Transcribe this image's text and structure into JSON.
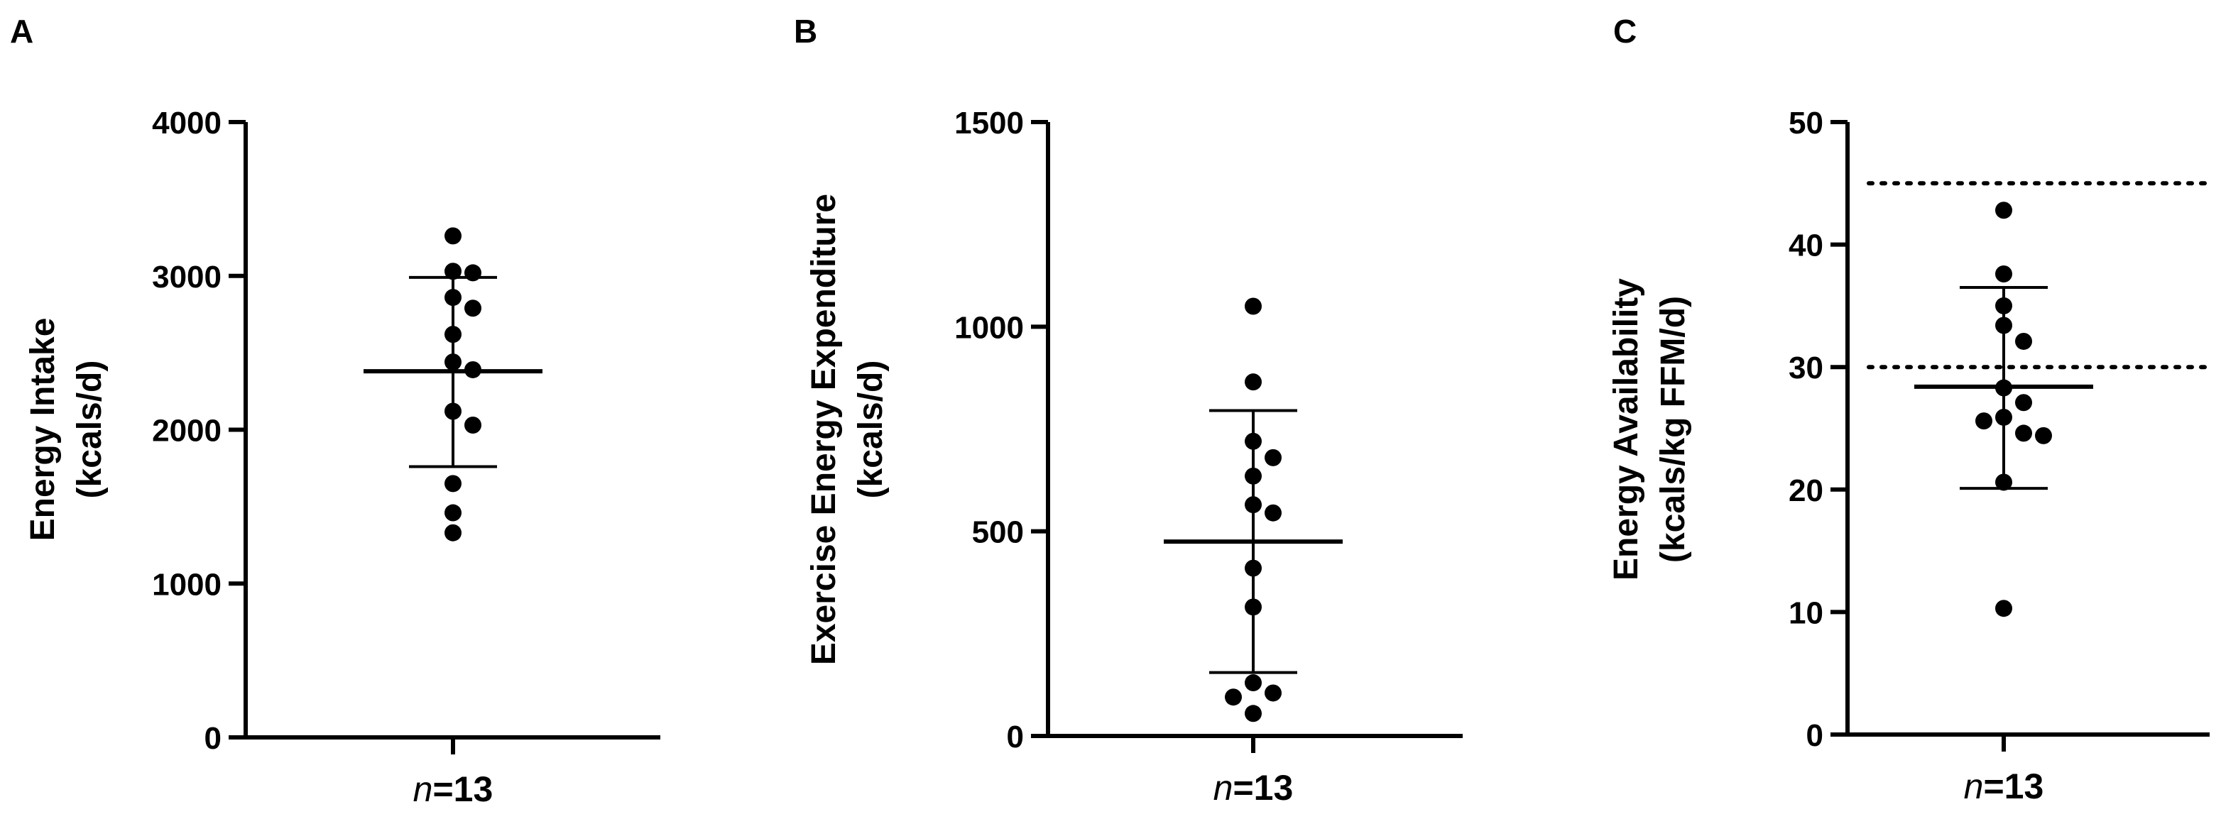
{
  "chart_data": [
    {
      "type": "scatter",
      "panel": "A",
      "title": "",
      "xlabel": "",
      "ylabel": [
        "Energy Intake",
        "(kcals/d)"
      ],
      "ylim": [
        0,
        4000
      ],
      "yticks": [
        0,
        1000,
        2000,
        3000,
        4000
      ],
      "category": {
        "italic": "n",
        "rest": "=13"
      },
      "values": [
        3260,
        3030,
        3020,
        2860,
        2790,
        2620,
        2440,
        2390,
        2120,
        2030,
        1650,
        1460,
        1330
      ],
      "mean": 2380,
      "sd_low": 1760,
      "sd_high": 2990,
      "reference_lines": []
    },
    {
      "type": "scatter",
      "panel": "B",
      "title": "",
      "xlabel": "",
      "ylabel": [
        "Exercise Energy Expenditure",
        "(kcals/d)"
      ],
      "ylim": [
        0,
        1500
      ],
      "yticks": [
        0,
        500,
        1000,
        1500
      ],
      "category": {
        "italic": "n",
        "rest": "=13"
      },
      "values": [
        1050,
        865,
        720,
        680,
        635,
        565,
        545,
        410,
        315,
        130,
        105,
        95,
        55
      ],
      "mean": 475,
      "sd_low": 155,
      "sd_high": 795,
      "reference_lines": []
    },
    {
      "type": "scatter",
      "panel": "C",
      "title": "",
      "xlabel": "",
      "ylabel": [
        "Energy Availability",
        "(kcals/kg FFM/d)"
      ],
      "ylim": [
        0,
        50
      ],
      "yticks": [
        0,
        10,
        20,
        30,
        40,
        50
      ],
      "category": {
        "italic": "n",
        "rest": "=13"
      },
      "values": [
        42.8,
        37.6,
        35.0,
        33.4,
        32.1,
        28.3,
        27.1,
        25.9,
        25.6,
        24.6,
        24.4,
        20.6,
        10.3
      ],
      "mean": 28.4,
      "sd_low": 20.1,
      "sd_high": 36.5,
      "reference_lines": [
        45,
        30
      ]
    }
  ]
}
